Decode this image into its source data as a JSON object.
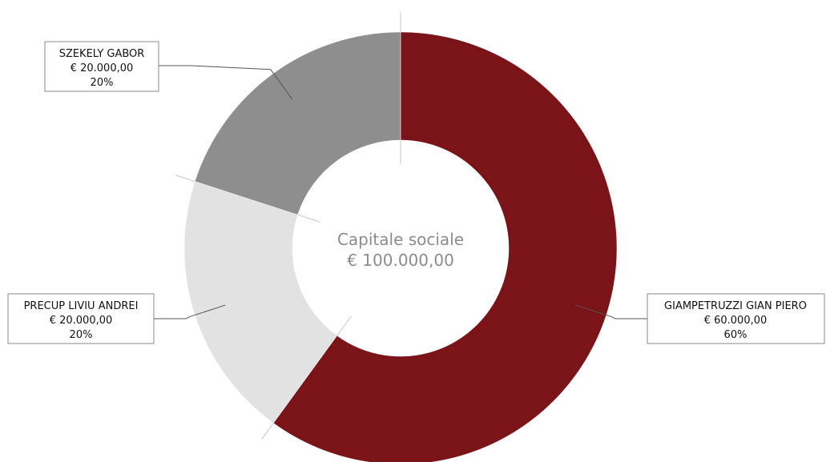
{
  "chart_data": {
    "type": "pie",
    "center_title": "Capitale sociale",
    "center_total": "€ 100.000,00",
    "series": [
      {
        "name": "GIAMPETRUZZI GIAN PIERO",
        "amount_label": "€ 60.000,00",
        "percent_label": "60%",
        "value": 60,
        "color": "#7a1418"
      },
      {
        "name": "PRECUP LIVIU ANDREI",
        "amount_label": "€ 20.000,00",
        "percent_label": "20%",
        "value": 20,
        "color": "#e2e2e2"
      },
      {
        "name": "SZEKELY GABOR",
        "amount_label": "€ 20.000,00",
        "percent_label": "20%",
        "value": 20,
        "color": "#8e8e8e"
      }
    ]
  }
}
